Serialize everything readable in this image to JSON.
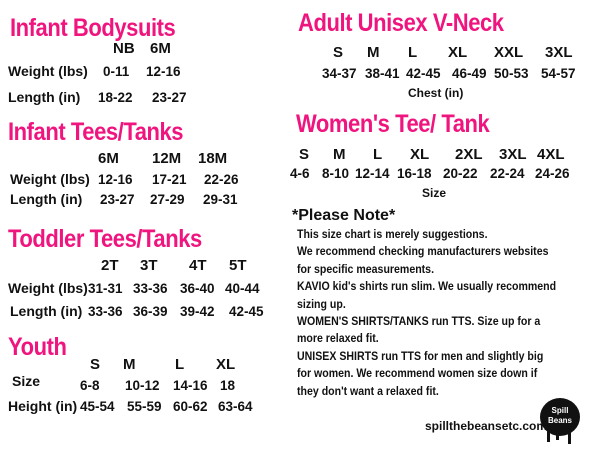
{
  "infant_bodysuits": {
    "title": "Infant Bodysuits",
    "sizes": [
      "NB",
      "6M"
    ],
    "rows": [
      {
        "label": "Weight (lbs)",
        "values": [
          "0-11",
          "12-16"
        ]
      },
      {
        "label": "Length (in)",
        "values": [
          "18-22",
          "23-27"
        ]
      }
    ]
  },
  "infant_tees": {
    "title": "Infant Tees/Tanks",
    "sizes": [
      "6M",
      "12M",
      "18M"
    ],
    "rows": [
      {
        "label": "Weight (lbs)",
        "values": [
          "12-16",
          "17-21",
          "22-26"
        ]
      },
      {
        "label": "Length (in)",
        "values": [
          "23-27",
          "27-29",
          "29-31"
        ]
      }
    ]
  },
  "toddler_tees": {
    "title": "Toddler  Tees/Tanks",
    "sizes": [
      "2T",
      "3T",
      "4T",
      "5T"
    ],
    "rows": [
      {
        "label": "Weight (lbs)",
        "values": [
          "31-31",
          "33-36",
          "36-40",
          "40-44"
        ]
      },
      {
        "label": "Length (in)",
        "values": [
          "33-36",
          "36-39",
          "39-42",
          "42-45"
        ]
      }
    ]
  },
  "youth": {
    "title": "Youth",
    "sizes": [
      "S",
      "M",
      "L",
      "XL"
    ],
    "rows": [
      {
        "label": "Size",
        "values": [
          "6-8",
          "10-12",
          "14-16",
          "18"
        ]
      },
      {
        "label": "Height (in)",
        "values": [
          "45-54",
          "55-59",
          "60-62",
          "63-64"
        ]
      }
    ]
  },
  "adult_unisex": {
    "title": "Adult Unisex V-Neck",
    "sizes": [
      "S",
      "M",
      "L",
      "XL",
      "XXL",
      "3XL"
    ],
    "values": [
      "34-37",
      "38-41",
      "42-45",
      "46-49",
      "50-53",
      "54-57"
    ],
    "caption": "Chest (in)"
  },
  "womens_tee": {
    "title": "Women's Tee/ Tank",
    "sizes": [
      "S",
      "M",
      "L",
      "XL",
      "2XL",
      "3XL",
      "4XL"
    ],
    "values": [
      "4-6",
      "8-10",
      "12-14",
      "16-18",
      "20-22",
      "22-24",
      "24-26"
    ],
    "caption": "Size"
  },
  "note": {
    "title": "*Please Note*",
    "lines": [
      "This size chart is merely suggestions.",
      "We recommend checking manufacturers websites",
      "for specific measurements.",
      {
        "bold": "KAVIO",
        "text": " kid's shirts run slim. We usually recommend"
      },
      "sizing up.",
      {
        "bold": "WOMEN'S SHIRTS/TANKS",
        "text": " run TTS. Size up for a"
      },
      "more relaxed fit.",
      {
        "bold": "UNISEX SHIRTS",
        "text": " run TTS for men and slightly big"
      },
      "for women. We recommend women size down if",
      "they don't want a relaxed fit."
    ]
  },
  "footer": {
    "website": "spillthebeansetc.com",
    "logo_text": "Spill the Beans etc"
  },
  "colors": {
    "heading": "#f0147e",
    "text": "#111111"
  }
}
